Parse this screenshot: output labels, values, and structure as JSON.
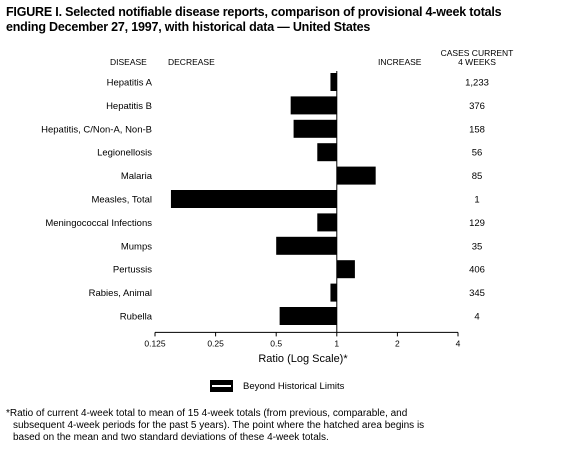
{
  "title_line1": "FIGURE I. Selected notifiable disease reports, comparison of provisional 4-week totals",
  "title_line2": "ending December 27, 1997, with historical data — United States",
  "headers": {
    "disease": "DISEASE",
    "decrease": "DECREASE",
    "increase": "INCREASE",
    "cases_line1": "CASES CURRENT",
    "cases_line2": "4 WEEKS"
  },
  "chart_data": {
    "type": "bar",
    "orientation": "horizontal",
    "scale": "log2",
    "baseline": 1,
    "xlim": [
      0.125,
      4
    ],
    "xticks": [
      "0.125",
      "0.25",
      "0.5",
      "1",
      "2",
      "4"
    ],
    "xlabel": "Ratio (Log Scale)*",
    "categories": [
      "Hepatitis A",
      "Hepatitis B",
      "Hepatitis, C/Non-A, Non-B",
      "Legionellosis",
      "Malaria",
      "Measles, Total",
      "Meningococcal Infections",
      "Mumps",
      "Pertussis",
      "Rabies, Animal",
      "Rubella"
    ],
    "values": [
      0.93,
      0.59,
      0.61,
      0.8,
      1.56,
      0.15,
      0.8,
      0.5,
      1.23,
      0.93,
      0.52
    ],
    "cases": [
      "1,233",
      "376",
      "158",
      "56",
      "85",
      "1",
      "129",
      "35",
      "406",
      "345",
      "4"
    ],
    "legend": "Beyond Historical Limits",
    "bar_color": "#000000"
  },
  "footnote_line1": "*Ratio of current 4-week total to mean of 15 4-week totals (from previous, comparable, and",
  "footnote_line2": "subsequent 4-week periods for the past 5 years). The point where the hatched area begins is",
  "footnote_line3": "based on the mean and two standard deviations of these 4-week totals."
}
